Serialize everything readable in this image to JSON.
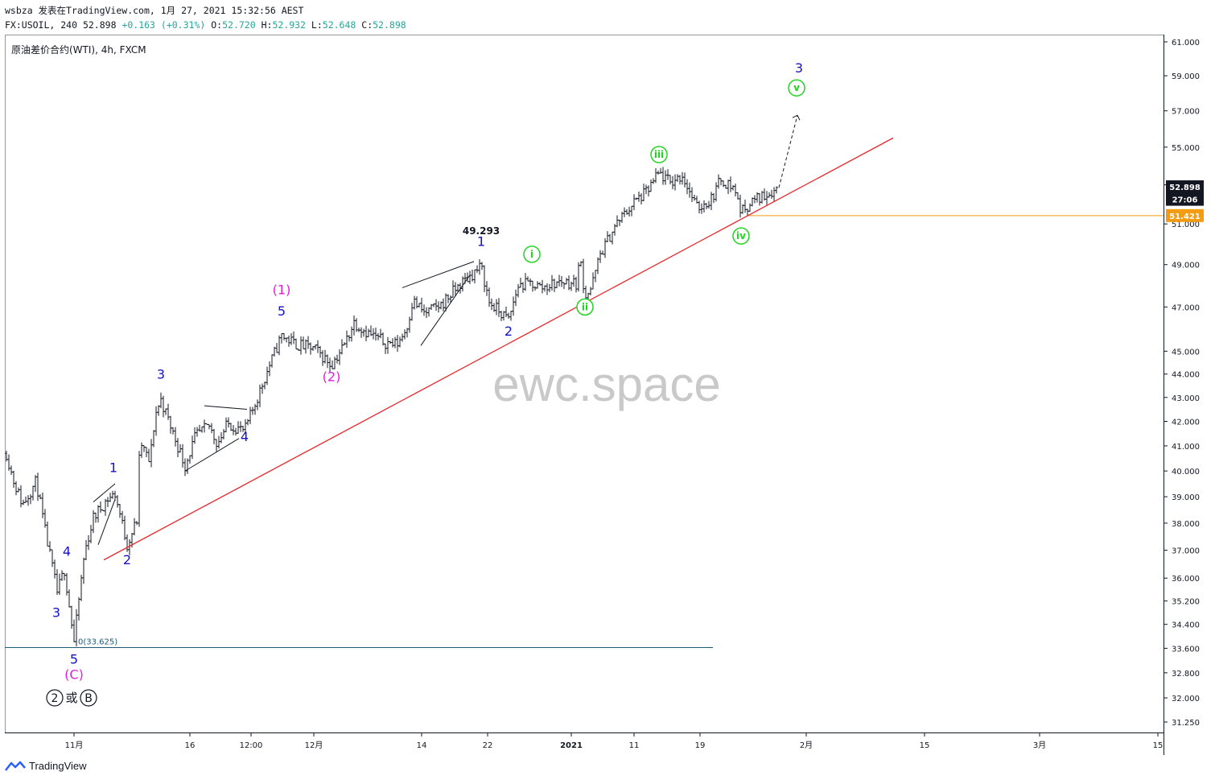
{
  "header": {
    "line1": "wsbza 发表在TradingView.com, 1月 27, 2021 15:32:56 AEST",
    "symbol": "FX:USOIL, 240",
    "last": "52.898",
    "change": "+0.163 (+0.31%)",
    "o_label": "O:",
    "o_value": "52.720",
    "h_label": "H:",
    "h_value": "52.932",
    "l_label": "L:",
    "l_value": "52.648",
    "c_label": "C:",
    "c_value": "52.898"
  },
  "legend": "原油差价合约(WTI), 4h, FXCM",
  "watermark": "ewc.space",
  "footer": {
    "brand": "TradingView"
  },
  "colors": {
    "blue_wave": "#1512c9",
    "magenta_wave": "#e020e0",
    "green_wave": "#22d422",
    "trendline": "#e8272a",
    "support": "#f39c12",
    "baseline": "#1c5b79",
    "price_tag": "#131722"
  },
  "chart_data": {
    "type": "ohlc",
    "symbol": "FX:USOIL",
    "interval": "240",
    "y_ticks": [
      "61.000",
      "59.000",
      "57.000",
      "55.000",
      "53.000",
      "51.000",
      "49.000",
      "47.000",
      "45.000",
      "44.000",
      "43.000",
      "42.000",
      "41.000",
      "40.000",
      "39.000",
      "38.000",
      "37.000",
      "36.000",
      "35.200",
      "34.400",
      "33.600",
      "32.800",
      "32.000",
      "31.250"
    ],
    "x_ticks": [
      {
        "label": "11月",
        "bold": false
      },
      {
        "label": "16",
        "bold": false
      },
      {
        "label": "12:00",
        "bold": false
      },
      {
        "label": "12月",
        "bold": false
      },
      {
        "label": "14",
        "bold": false
      },
      {
        "label": "22",
        "bold": false
      },
      {
        "label": "2021",
        "bold": true
      },
      {
        "label": "11",
        "bold": false
      },
      {
        "label": "19",
        "bold": false
      },
      {
        "label": "2月",
        "bold": false
      },
      {
        "label": "15",
        "bold": false
      },
      {
        "label": "3月",
        "bold": false
      },
      {
        "label": "15",
        "bold": false
      }
    ],
    "price_tags": [
      {
        "label": "52.898",
        "value": 52.898,
        "color": "#131722"
      },
      {
        "label": "27:06",
        "value": 52.25,
        "color": "#131722"
      },
      {
        "label": "51.421",
        "value": 51.421,
        "color": "#f39c12"
      }
    ],
    "high_label": "49.293",
    "low_label": "0(33.625)",
    "low_value": 33.625,
    "support_value": 51.421,
    "wave_labels": [
      {
        "text": "3",
        "color": "blue",
        "t": 62,
        "v": 34.65
      },
      {
        "text": "4",
        "color": "blue",
        "t": 75,
        "v": 36.8
      },
      {
        "text": "5",
        "color": "blue",
        "t": 84,
        "v": 33.1
      },
      {
        "text": "(C)",
        "color": "magenta",
        "t": 84,
        "v": 32.6
      },
      {
        "text": "1",
        "color": "blue",
        "t": 133,
        "v": 39.95
      },
      {
        "text": "2",
        "color": "blue",
        "t": 150,
        "v": 36.5
      },
      {
        "text": "3",
        "color": "blue",
        "t": 192,
        "v": 43.8
      },
      {
        "text": "4",
        "color": "blue",
        "t": 296,
        "v": 41.2
      },
      {
        "text": "5",
        "color": "blue",
        "t": 342,
        "v": 46.6
      },
      {
        "text": "(1)",
        "color": "magenta",
        "t": 342,
        "v": 47.6
      },
      {
        "text": "(2)",
        "color": "magenta",
        "t": 404,
        "v": 43.7
      },
      {
        "text": "1",
        "color": "blue",
        "t": 590,
        "v": 49.9
      },
      {
        "text": "2",
        "color": "blue",
        "t": 624,
        "v": 45.7
      },
      {
        "text": "3",
        "color": "blue",
        "t": 985,
        "v": 59.2
      }
    ],
    "circled_labels": [
      {
        "text": "i",
        "t": 653,
        "v": 49.5
      },
      {
        "text": "ii",
        "t": 719,
        "v": 47.0
      },
      {
        "text": "iii",
        "t": 811,
        "v": 54.6
      },
      {
        "text": "iv",
        "t": 913,
        "v": 50.4
      },
      {
        "text": "v",
        "t": 982,
        "v": 58.3
      }
    ],
    "bottom_marks": [
      {
        "text": "2",
        "circled": true
      },
      {
        "text": "或",
        "circled": false
      },
      {
        "text": "B",
        "circled": true
      }
    ],
    "trendline": {
      "from": {
        "t": 121,
        "v": 36.65
      },
      "to": {
        "t": 1102,
        "v": 55.5
      }
    },
    "projection": {
      "from": {
        "t": 960,
        "v": 52.85
      },
      "to": {
        "t": 983,
        "v": 56.75
      }
    },
    "pattern_lines": [
      {
        "from": {
          "t": 108,
          "v": 38.8
        },
        "to": {
          "t": 135,
          "v": 39.5
        }
      },
      {
        "from": {
          "t": 114,
          "v": 37.2
        },
        "to": {
          "t": 135,
          "v": 38.9
        }
      },
      {
        "from": {
          "t": 246,
          "v": 42.65
        },
        "to": {
          "t": 299,
          "v": 42.5
        }
      },
      {
        "from": {
          "t": 222,
          "v": 40.0
        },
        "to": {
          "t": 289,
          "v": 41.3
        }
      },
      {
        "from": {
          "t": 492,
          "v": 47.9
        },
        "to": {
          "t": 581,
          "v": 49.15
        }
      },
      {
        "from": {
          "t": 515,
          "v": 45.25
        },
        "to": {
          "t": 576,
          "v": 48.5
        }
      }
    ],
    "anchors": [
      {
        "t": 0,
        "v": 40.7
      },
      {
        "t": 8,
        "v": 39.7
      },
      {
        "t": 20,
        "v": 38.7
      },
      {
        "t": 37,
        "v": 39.6
      },
      {
        "t": 48,
        "v": 37.7
      },
      {
        "t": 63,
        "v": 35.5
      },
      {
        "t": 72,
        "v": 36.3
      },
      {
        "t": 84,
        "v": 33.8
      },
      {
        "t": 97,
        "v": 36.9
      },
      {
        "t": 108,
        "v": 38.2
      },
      {
        "t": 125,
        "v": 38.9
      },
      {
        "t": 135,
        "v": 39.1
      },
      {
        "t": 150,
        "v": 37.2
      },
      {
        "t": 162,
        "v": 38.1
      },
      {
        "t": 166,
        "v": 41.2
      },
      {
        "t": 178,
        "v": 40.3
      },
      {
        "t": 185,
        "v": 42.3
      },
      {
        "t": 192,
        "v": 42.9
      },
      {
        "t": 205,
        "v": 41.7
      },
      {
        "t": 222,
        "v": 40.2
      },
      {
        "t": 235,
        "v": 41.4
      },
      {
        "t": 252,
        "v": 41.8
      },
      {
        "t": 262,
        "v": 41.1
      },
      {
        "t": 275,
        "v": 41.9
      },
      {
        "t": 296,
        "v": 41.6
      },
      {
        "t": 312,
        "v": 43.0
      },
      {
        "t": 326,
        "v": 44.3
      },
      {
        "t": 342,
        "v": 45.7
      },
      {
        "t": 360,
        "v": 45.3
      },
      {
        "t": 383,
        "v": 45.1
      },
      {
        "t": 404,
        "v": 44.4
      },
      {
        "t": 420,
        "v": 45.3
      },
      {
        "t": 432,
        "v": 46.3
      },
      {
        "t": 450,
        "v": 45.8
      },
      {
        "t": 470,
        "v": 45.4
      },
      {
        "t": 485,
        "v": 45.3
      },
      {
        "t": 497,
        "v": 46.0
      },
      {
        "t": 505,
        "v": 47.3
      },
      {
        "t": 520,
        "v": 46.7
      },
      {
        "t": 540,
        "v": 47.1
      },
      {
        "t": 565,
        "v": 48.1
      },
      {
        "t": 590,
        "v": 48.9
      },
      {
        "t": 600,
        "v": 47.2
      },
      {
        "t": 624,
        "v": 46.4
      },
      {
        "t": 636,
        "v": 48.0
      },
      {
        "t": 653,
        "v": 48.1
      },
      {
        "t": 665,
        "v": 47.9
      },
      {
        "t": 690,
        "v": 48.2
      },
      {
        "t": 708,
        "v": 48.1
      },
      {
        "t": 713,
        "v": 49.3
      },
      {
        "t": 719,
        "v": 47.5
      },
      {
        "t": 727,
        "v": 47.9
      },
      {
        "t": 738,
        "v": 49.5
      },
      {
        "t": 758,
        "v": 51.0
      },
      {
        "t": 780,
        "v": 52.1
      },
      {
        "t": 795,
        "v": 52.6
      },
      {
        "t": 811,
        "v": 53.6
      },
      {
        "t": 825,
        "v": 53.1
      },
      {
        "t": 840,
        "v": 53.5
      },
      {
        "t": 858,
        "v": 51.8
      },
      {
        "t": 875,
        "v": 52.2
      },
      {
        "t": 888,
        "v": 53.3
      },
      {
        "t": 905,
        "v": 52.8
      },
      {
        "t": 913,
        "v": 51.6
      },
      {
        "t": 925,
        "v": 52.1
      },
      {
        "t": 943,
        "v": 52.5
      },
      {
        "t": 953,
        "v": 52.7
      },
      {
        "t": 958,
        "v": 52.85
      }
    ]
  }
}
